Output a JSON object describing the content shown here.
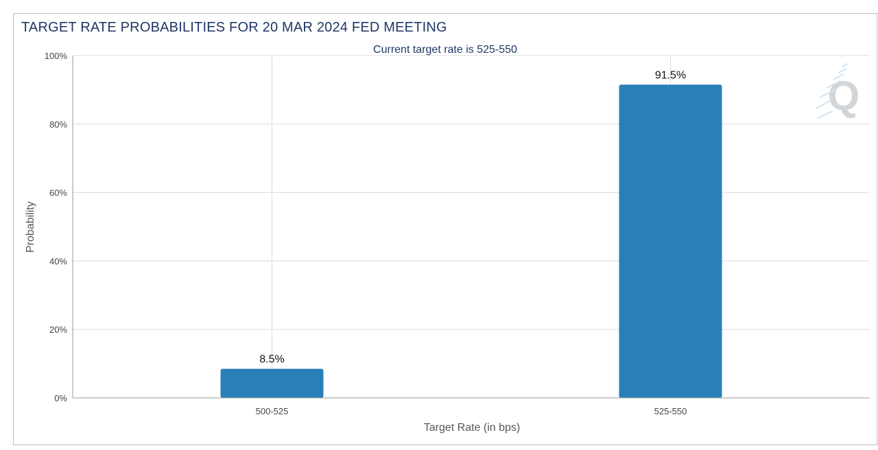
{
  "header": {
    "title": "TARGET RATE PROBABILITIES FOR 20 MAR 2024 FED MEETING"
  },
  "colors": {
    "bar": "#2980b9",
    "grid": "#dcdcdc",
    "title": "#1f3763",
    "watermark": "#c8ccd0"
  },
  "watermark": {
    "letter": "Q"
  },
  "chart_data": {
    "type": "bar",
    "title": "",
    "subtitle": "Current target rate is 525-550",
    "xlabel": "Target Rate (in bps)",
    "ylabel": "Probability",
    "categories": [
      "500-525",
      "525-550"
    ],
    "values": [
      8.5,
      91.5
    ],
    "data_labels": [
      "8.5%",
      "91.5%"
    ],
    "ylim": [
      0,
      100
    ],
    "yticks": [
      0,
      20,
      40,
      60,
      80,
      100
    ],
    "ytick_labels": [
      "0%",
      "20%",
      "40%",
      "60%",
      "80%",
      "100%"
    ],
    "grid": true,
    "legend": "none"
  }
}
